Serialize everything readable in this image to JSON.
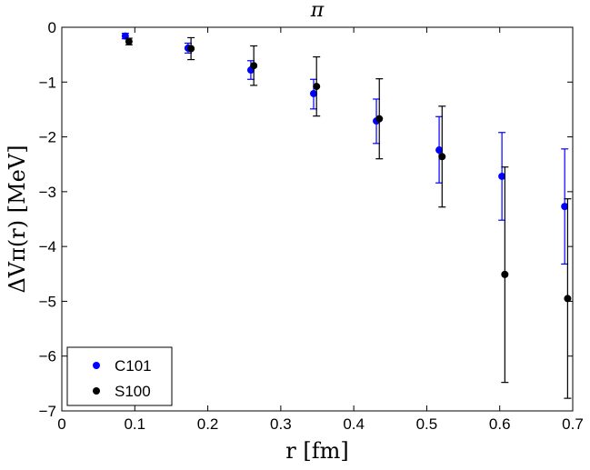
{
  "chart_data": {
    "type": "scatter",
    "title": "π",
    "xlabel": "r [fm]",
    "ylabel": "ΔVπ(r) [MeV]",
    "xlim": [
      0,
      0.7
    ],
    "ylim": [
      -7,
      0
    ],
    "xticks": [
      0,
      0.1,
      0.2,
      0.3,
      0.4,
      0.5,
      0.6,
      0.7
    ],
    "xtick_labels": [
      "0",
      "0.1",
      "0.2",
      "0.3",
      "0.4",
      "0.5",
      "0.6",
      "0.7"
    ],
    "yticks": [
      0,
      -1,
      -2,
      -3,
      -4,
      -5,
      -6,
      -7
    ],
    "ytick_labels": [
      "0",
      "−1",
      "−2",
      "−3",
      "−4",
      "−5",
      "−6",
      "−7"
    ],
    "grid": false,
    "legend_position": "bottom-left",
    "series": [
      {
        "name": "C101",
        "color": "#0000ff",
        "x": [
          0.087,
          0.173,
          0.259,
          0.345,
          0.431,
          0.517,
          0.603,
          0.689
        ],
        "y": [
          -0.16,
          -0.38,
          -0.78,
          -1.21,
          -1.71,
          -2.24,
          -2.72,
          -3.27
        ],
        "err_low": [
          0.05,
          0.09,
          0.17,
          0.28,
          0.41,
          0.6,
          0.8,
          1.05
        ],
        "err_high": [
          0.05,
          0.09,
          0.17,
          0.26,
          0.4,
          0.61,
          0.8,
          1.05
        ]
      },
      {
        "name": "S100",
        "color": "#000000",
        "x": [
          0.092,
          0.177,
          0.263,
          0.349,
          0.435,
          0.521,
          0.607,
          0.693
        ],
        "y": [
          -0.26,
          -0.39,
          -0.7,
          -1.08,
          -1.67,
          -2.36,
          -4.51,
          -4.95
        ],
        "err_low": [
          0.06,
          0.2,
          0.36,
          0.54,
          0.73,
          0.92,
          1.97,
          1.82
        ],
        "err_high": [
          0.06,
          0.2,
          0.36,
          0.54,
          0.73,
          0.92,
          1.96,
          1.82
        ]
      }
    ]
  }
}
